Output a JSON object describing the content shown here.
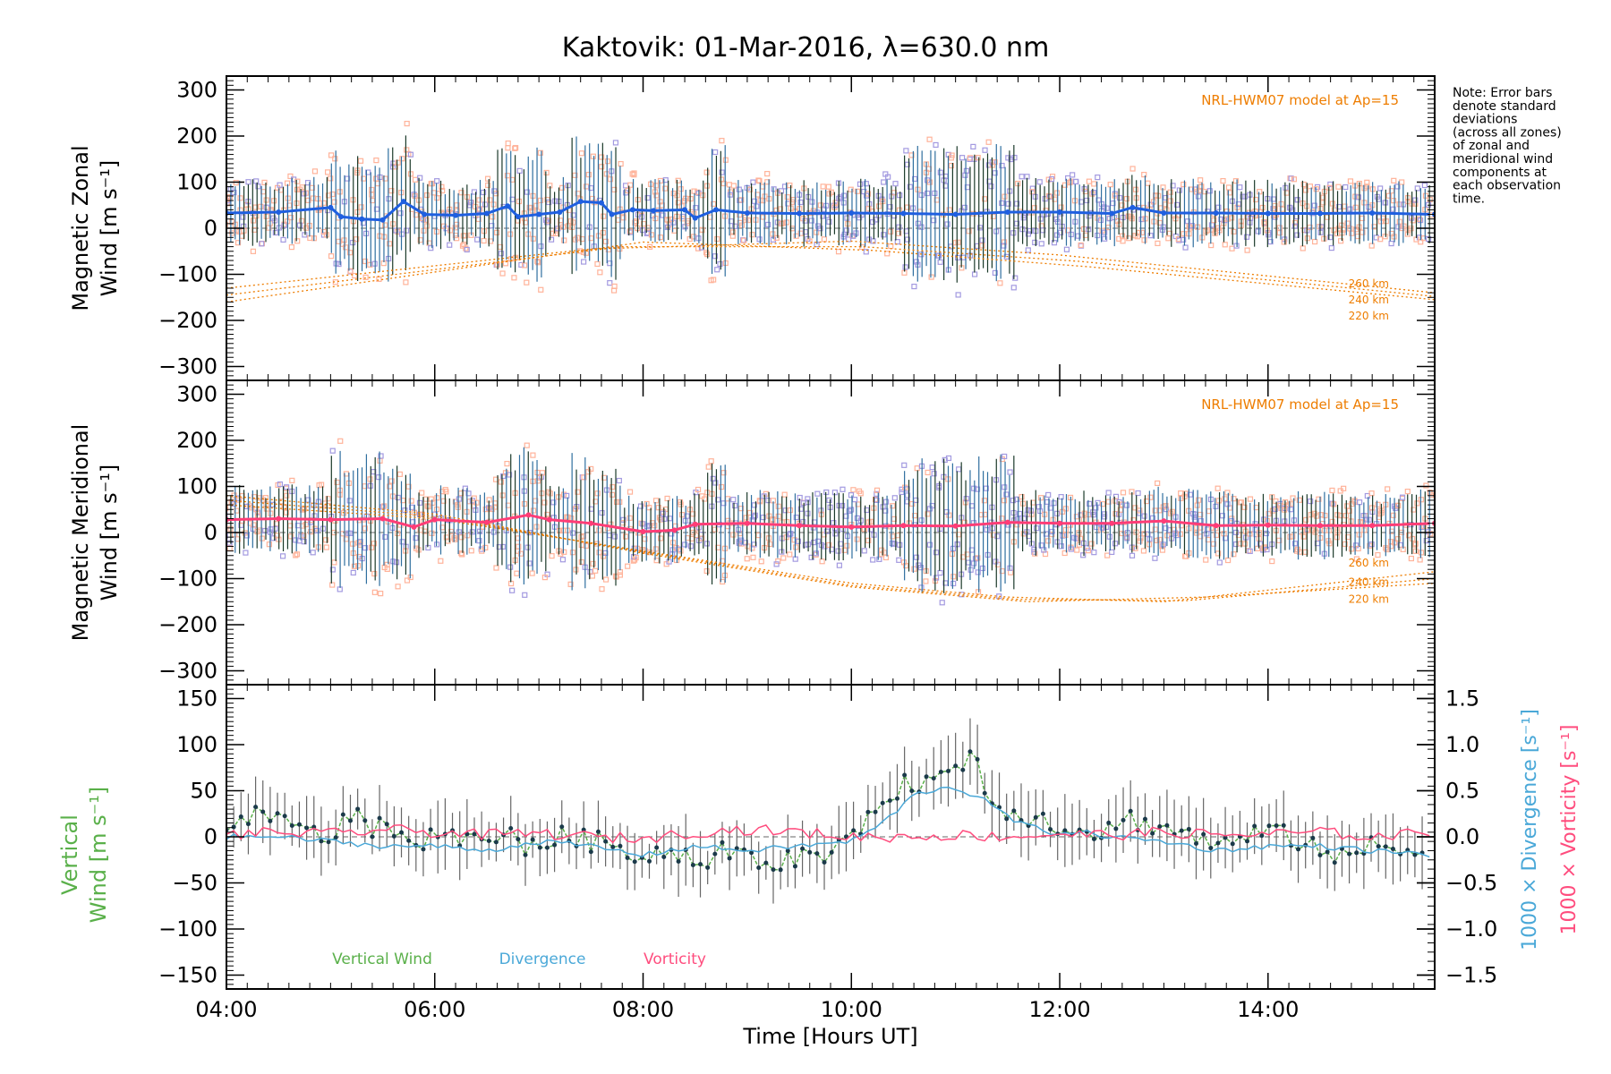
{
  "figure": {
    "title": "Kaktovik: 01-Mar-2016, λ=630.0 nm",
    "note": [
      "Note: Error bars",
      "denote standard",
      "deviations",
      "(across all zones)",
      "of zonal and",
      "meridional wind",
      "components at",
      "each observation",
      "time."
    ],
    "xlabel": "Time [Hours UT]",
    "xticks": [
      "04:00",
      "06:00",
      "08:00",
      "10:00",
      "12:00",
      "14:00"
    ]
  },
  "colors": {
    "zonal": "#1f5fe0",
    "meridional": "#ff3d77",
    "model": "#ee7d00",
    "zone_orange": "#ffb39a",
    "zone_purple": "#a39ae0",
    "vertical": "#5ab04a",
    "divergence": "#4aa8d8",
    "vorticity": "#ff4d7e",
    "errbar": "#1b3a2a"
  },
  "chart_data": [
    {
      "type": "line",
      "ylabel": [
        "Magnetic Zonal",
        "Wind [m s⁻¹]"
      ],
      "ylim": [
        -330,
        330
      ],
      "yticks": [
        "300",
        "200",
        "100",
        "0",
        "−100",
        "−200",
        "−300"
      ],
      "model_label": "NRL-HWM07 model at Ap=15",
      "model_series": [
        {
          "name": "260 km",
          "x": [
            4,
            7.5,
            10,
            12,
            15.6
          ],
          "y": [
            -130,
            -45,
            -28,
            -58,
            -140
          ]
        },
        {
          "name": "240 km",
          "x": [
            4,
            7.8,
            10.1,
            12.2,
            15.6
          ],
          "y": [
            -145,
            -40,
            -40,
            -72,
            -148
          ]
        },
        {
          "name": "220 km",
          "x": [
            4,
            8,
            10.2,
            12.3,
            15.6
          ],
          "y": [
            -160,
            -30,
            -48,
            -84,
            -155
          ]
        }
      ],
      "series": [
        {
          "name": "Magnetic Zonal Wind",
          "x": [
            4,
            4.5,
            5,
            5.1,
            5.3,
            5.5,
            5.7,
            5.9,
            6.2,
            6.5,
            6.7,
            6.8,
            7,
            7.2,
            7.4,
            7.6,
            7.7,
            7.9,
            8.1,
            8.4,
            8.5,
            8.7,
            9,
            9.5,
            10,
            10.5,
            11,
            11.5,
            12,
            12.5,
            12.7,
            13,
            13.5,
            14,
            14.5,
            15,
            15.6
          ],
          "y": [
            33,
            35,
            45,
            25,
            20,
            18,
            58,
            30,
            28,
            32,
            48,
            25,
            30,
            35,
            58,
            55,
            30,
            40,
            38,
            40,
            22,
            40,
            33,
            32,
            33,
            32,
            30,
            35,
            35,
            32,
            45,
            33,
            33,
            32,
            32,
            33,
            30
          ]
        }
      ]
    },
    {
      "type": "line",
      "ylabel": [
        "Magnetic Meridional",
        "Wind [m s⁻¹]"
      ],
      "ylim": [
        -330,
        330
      ],
      "yticks": [
        "300",
        "200",
        "100",
        "0",
        "−100",
        "−200",
        "−300"
      ],
      "model_label": "NRL-HWM07 model at Ap=15",
      "model_series": [
        {
          "name": "260 km",
          "x": [
            4,
            6,
            8,
            10,
            11.5,
            13,
            15.6
          ],
          "y": [
            60,
            30,
            -40,
            -110,
            -140,
            -150,
            -85
          ]
        },
        {
          "name": "240 km",
          "x": [
            4,
            6,
            8,
            10,
            11.6,
            13.2,
            15.6
          ],
          "y": [
            70,
            35,
            -42,
            -115,
            -145,
            -148,
            -100
          ]
        },
        {
          "name": "220 km",
          "x": [
            4,
            6,
            8,
            10,
            11.7,
            13.4,
            15.6
          ],
          "y": [
            80,
            40,
            -45,
            -118,
            -150,
            -140,
            -110
          ]
        }
      ],
      "series": [
        {
          "name": "Magnetic Meridional Wind",
          "x": [
            4,
            4.5,
            5,
            5.5,
            5.8,
            6,
            6.5,
            6.9,
            7.1,
            7.5,
            8,
            8.3,
            8.5,
            9,
            9.5,
            10,
            10.5,
            11,
            11.5,
            12,
            12.5,
            13,
            13.5,
            14,
            14.5,
            15,
            15.6
          ],
          "y": [
            28,
            30,
            28,
            30,
            12,
            28,
            22,
            38,
            28,
            20,
            2,
            5,
            18,
            20,
            15,
            12,
            15,
            14,
            22,
            20,
            20,
            25,
            15,
            16,
            15,
            15,
            20
          ]
        }
      ]
    },
    {
      "type": "line",
      "ylabel": [
        "Vertical",
        "Wind [m s⁻¹]"
      ],
      "ylim": [
        -165,
        165
      ],
      "yticks": [
        "150",
        "100",
        "50",
        "0",
        "−50",
        "−100",
        "−150"
      ],
      "y2lim": [
        -1.65,
        1.65
      ],
      "y2ticks": [
        "1.5",
        "1.0",
        "0.5",
        "0.0",
        "−0.5",
        "−1.0",
        "−1.5"
      ],
      "y2labels": {
        "divergence": "1000 × Divergence [s⁻¹]",
        "vorticity": "1000 × Vorticity [s⁻¹]"
      },
      "legend": [
        "Vertical Wind",
        "Divergence",
        "Vorticity"
      ],
      "series": [
        {
          "name": "Vertical Wind",
          "x": [
            4,
            4.2,
            4.5,
            4.8,
            5,
            5.3,
            5.4,
            5.6,
            5.8,
            6,
            6.3,
            6.6,
            6.9,
            7.2,
            7.5,
            7.8,
            8,
            8.3,
            8.6,
            8.8,
            9,
            9.2,
            9.5,
            9.8,
            10,
            10.1,
            10.3,
            10.6,
            10.9,
            11.1,
            11.2,
            11.3,
            11.5,
            11.8,
            12.1,
            12.4,
            12.7,
            13,
            13.3,
            13.6,
            13.9,
            14.2,
            14.5,
            14.7,
            15,
            15.3,
            15.6
          ],
          "y": [
            10,
            25,
            15,
            5,
            0,
            35,
            10,
            5,
            -5,
            0,
            -5,
            5,
            -10,
            0,
            -5,
            -10,
            -20,
            -15,
            -30,
            -10,
            -25,
            -35,
            -20,
            -15,
            -10,
            15,
            45,
            60,
            65,
            85,
            90,
            40,
            30,
            20,
            10,
            5,
            20,
            10,
            0,
            -10,
            5,
            0,
            -10,
            -25,
            -10,
            -15,
            -10
          ]
        },
        {
          "name": "Divergence",
          "x": [
            4,
            4.5,
            5,
            5.5,
            6,
            6.5,
            7,
            7.5,
            8,
            8.5,
            9,
            9.5,
            10,
            10.3,
            10.6,
            10.9,
            11.2,
            11.4,
            11.6,
            11.9,
            12.2,
            12.5,
            13,
            13.5,
            14,
            14.5,
            15,
            15.6
          ],
          "y": [
            0,
            0,
            -0.05,
            -0.1,
            -0.1,
            -0.15,
            -0.05,
            -0.1,
            -0.2,
            -0.1,
            -0.15,
            -0.1,
            -0.05,
            0.15,
            0.45,
            0.55,
            0.45,
            0.3,
            0.15,
            0.05,
            0.05,
            0.0,
            -0.05,
            -0.15,
            -0.1,
            -0.1,
            -0.15,
            -0.2
          ]
        },
        {
          "name": "Vorticity",
          "x": [
            4,
            4.5,
            5,
            5.5,
            6,
            6.5,
            7,
            7.5,
            8,
            8.5,
            9,
            9.5,
            10,
            10.5,
            11,
            11.5,
            12,
            12.5,
            13,
            13.5,
            14,
            14.5,
            15,
            15.6
          ],
          "y": [
            0.02,
            0.05,
            0.03,
            0.08,
            0.05,
            0.02,
            0.04,
            0.0,
            -0.02,
            0.05,
            0.08,
            0.05,
            0.0,
            0.0,
            0.02,
            0.0,
            0.03,
            0.02,
            0.05,
            0.02,
            0.03,
            0.05,
            0.0,
            0.05
          ]
        }
      ]
    }
  ]
}
